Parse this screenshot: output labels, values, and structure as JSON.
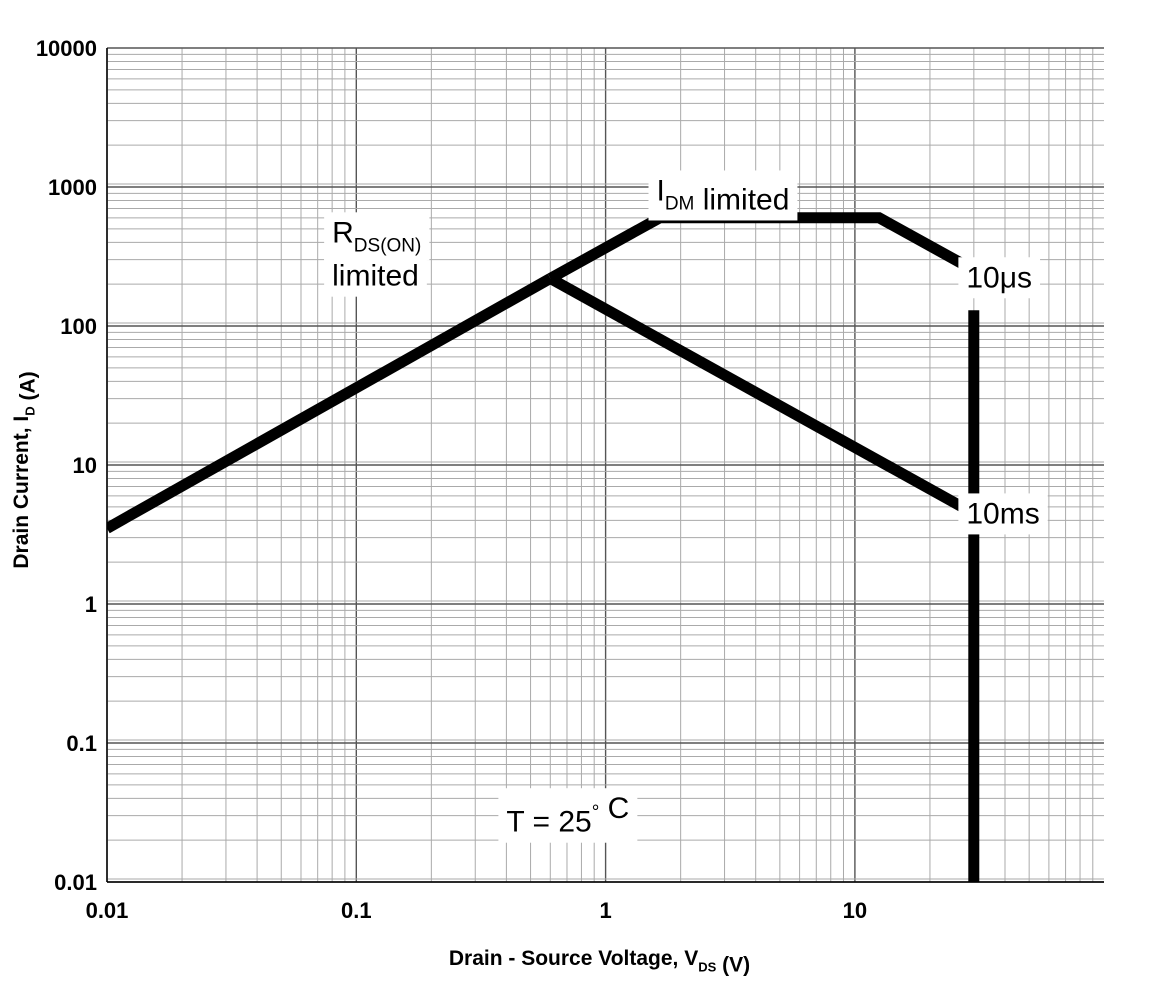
{
  "chart_data": {
    "type": "line",
    "title": "",
    "xlabel": {
      "main": "Drain - Source Voltage, V",
      "sub": "DS",
      "suffix": " (V)"
    },
    "ylabel": {
      "main": "Drain Current, I",
      "sub": "D",
      "suffix": " (A)"
    },
    "x_scale": "log",
    "y_scale": "log",
    "xlim": [
      0.01,
      90
    ],
    "ylim": [
      0.01,
      10000
    ],
    "grid": true,
    "x_tick_labels": [
      "0.01",
      "0.1",
      "1",
      "10"
    ],
    "x_tick_values": [
      0.01,
      0.1,
      1,
      10
    ],
    "y_tick_labels": [
      "0.01",
      "0.1",
      "1",
      "10",
      "100",
      "1000",
      "10000"
    ],
    "y_tick_values": [
      0.01,
      0.1,
      1,
      10,
      100,
      1000,
      10000
    ],
    "series": [
      {
        "id": "rdson",
        "x": [
          0.01,
          0.6
        ],
        "y": [
          3.5,
          220
        ]
      },
      {
        "id": "10us",
        "x": [
          0.6,
          1.65,
          12.5,
          28
        ],
        "y": [
          220,
          600,
          600,
          270
        ]
      },
      {
        "id": "10ms",
        "x": [
          0.6,
          28
        ],
        "y": [
          220,
          4.8
        ]
      },
      {
        "id": "dc-limit",
        "x": [
          30,
          30
        ],
        "y": [
          0.01,
          130
        ]
      }
    ],
    "annotations": [
      {
        "id": "idm",
        "parts": [
          [
            "I",
            ""
          ],
          [
            "DM",
            "sub"
          ],
          [
            " limited",
            ""
          ]
        ],
        "x": 1.6,
        "y": 800
      },
      {
        "id": "rdson-line1",
        "parts": [
          [
            "R",
            ""
          ],
          [
            "DS(ON)",
            "sub"
          ]
        ],
        "x": 0.08,
        "y": 400
      },
      {
        "id": "rdson-line2",
        "parts": [
          [
            "limited",
            ""
          ]
        ],
        "x": 0.08,
        "y": 195
      },
      {
        "id": "10us",
        "parts": [
          [
            "10",
            ""
          ],
          [
            "μs",
            ""
          ]
        ],
        "x": 28,
        "y": 190
      },
      {
        "id": "10ms",
        "parts": [
          [
            "10ms",
            ""
          ]
        ],
        "x": 28,
        "y": 3.8
      },
      {
        "id": "temp",
        "parts": [
          [
            "T = 25",
            ""
          ],
          [
            "°",
            "sup"
          ],
          [
            "  C",
            ""
          ]
        ],
        "x": 0.4,
        "y": 0.023
      }
    ]
  }
}
